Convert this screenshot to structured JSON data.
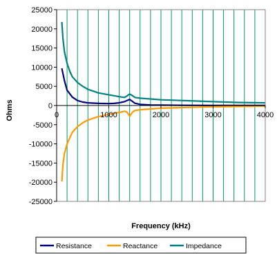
{
  "chart_data": {
    "type": "line",
    "title": "",
    "xlabel": "Frequency (kHz)",
    "ylabel": "Ohms",
    "xlim": [
      0,
      4000
    ],
    "ylim": [
      -25000,
      25000
    ],
    "x_ticks": [
      0,
      1000,
      2000,
      3000,
      4000
    ],
    "y_ticks": [
      25000,
      20000,
      15000,
      10000,
      5000,
      0,
      -5000,
      -10000,
      -15000,
      -20000,
      -25000
    ],
    "grid": "vertical",
    "legend_position": "bottom",
    "series": [
      {
        "name": "Resistance",
        "color": "#000080",
        "x": [
          100,
          150,
          200,
          300,
          400,
          500,
          600,
          800,
          1000,
          1100,
          1200,
          1300,
          1350,
          1400,
          1450,
          1500,
          1600,
          1800,
          2000,
          2500,
          3000,
          3500,
          4000
        ],
        "y": [
          9700,
          6500,
          4000,
          2200,
          1300,
          900,
          700,
          550,
          500,
          550,
          700,
          1000,
          1300,
          1600,
          1100,
          600,
          300,
          150,
          100,
          50,
          30,
          20,
          10
        ]
      },
      {
        "name": "Reactance",
        "color": "#FF9900",
        "x": [
          100,
          120,
          150,
          200,
          250,
          300,
          400,
          500,
          600,
          800,
          1000,
          1200,
          1300,
          1350,
          1400,
          1450,
          1500,
          1600,
          1800,
          2000,
          2500,
          3000,
          3500,
          4000
        ],
        "y": [
          -19800,
          -15500,
          -12500,
          -10000,
          -8500,
          -7000,
          -5500,
          -4500,
          -3800,
          -2900,
          -2300,
          -1800,
          -1500,
          -1700,
          -2800,
          -1800,
          -1300,
          -1100,
          -900,
          -700,
          -500,
          -350,
          -250,
          -150
        ]
      },
      {
        "name": "Impedance",
        "color": "#008080",
        "x": [
          100,
          120,
          150,
          200,
          250,
          300,
          400,
          500,
          600,
          800,
          1000,
          1200,
          1300,
          1350,
          1400,
          1450,
          1500,
          1600,
          1800,
          2000,
          2500,
          3000,
          3500,
          4000
        ],
        "y": [
          21800,
          17500,
          14000,
          11000,
          9000,
          7500,
          6000,
          5000,
          4200,
          3300,
          2800,
          2300,
          2100,
          2500,
          3000,
          2600,
          2100,
          1900,
          1700,
          1500,
          1250,
          1000,
          800,
          700
        ]
      }
    ]
  }
}
